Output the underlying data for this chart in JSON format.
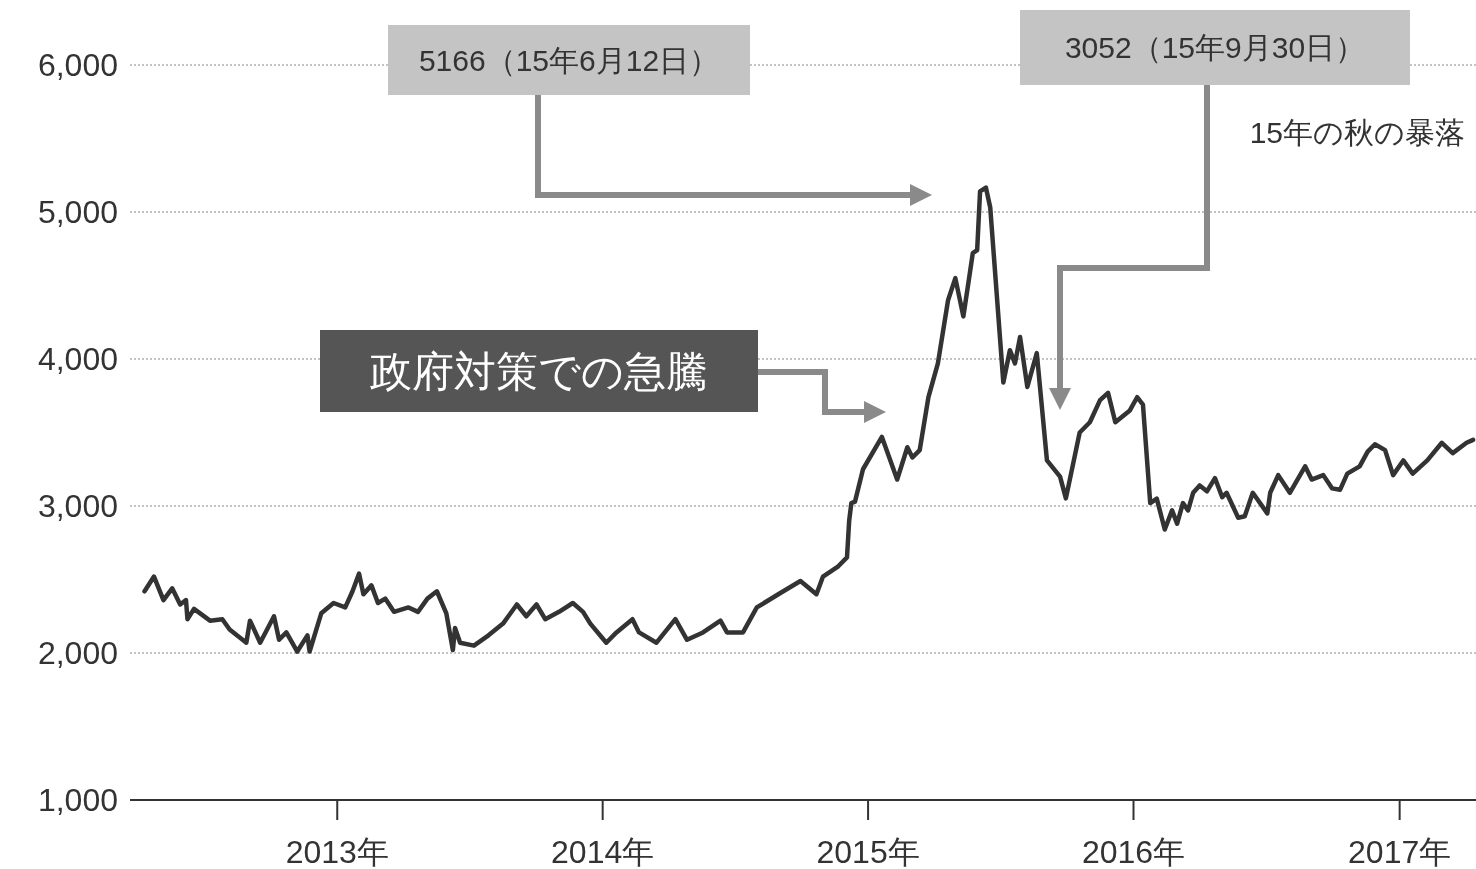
{
  "chart_data": {
    "type": "line",
    "x": [
      "2012-04-11",
      "2012-04-24",
      "2012-05-07",
      "2012-05-19",
      "2012-05-30",
      "2012-06-07",
      "2012-06-09",
      "2012-06-18",
      "2012-07-10",
      "2012-07-27",
      "2012-08-06",
      "2012-08-29",
      "2012-09-03",
      "2012-09-17",
      "2012-10-06",
      "2012-10-13",
      "2012-10-23",
      "2012-11-07",
      "2012-11-21",
      "2012-11-24",
      "2012-12-10",
      "2012-12-27",
      "2013-01-12",
      "2013-01-22",
      "2013-01-31",
      "2013-02-06",
      "2013-02-17",
      "2013-02-26",
      "2013-03-08",
      "2013-03-20",
      "2013-04-09",
      "2013-04-22",
      "2013-05-05",
      "2013-05-18",
      "2013-05-31",
      "2013-06-09",
      "2013-06-12",
      "2013-06-19",
      "2013-07-08",
      "2013-07-28",
      "2013-08-17",
      "2013-09-05",
      "2013-09-18",
      "2013-10-02",
      "2013-10-14",
      "2013-11-02",
      "2013-11-21",
      "2013-12-05",
      "2013-12-15",
      "2014-01-06",
      "2014-01-20",
      "2014-02-11",
      "2014-02-20",
      "2014-03-16",
      "2014-04-11",
      "2014-04-27",
      "2014-05-19",
      "2014-06-12",
      "2014-06-21",
      "2014-07-13",
      "2014-08-01",
      "2014-09-03",
      "2014-09-30",
      "2014-10-22",
      "2014-10-31",
      "2014-11-21",
      "2014-12-03",
      "2014-12-06",
      "2014-12-09",
      "2014-12-14",
      "2014-12-25",
      "2015-01-20",
      "2015-02-10",
      "2015-02-24",
      "2015-03-03",
      "2015-03-13",
      "2015-03-25",
      "2015-04-07",
      "2015-04-21",
      "2015-05-01",
      "2015-05-12",
      "2015-05-19",
      "2015-05-25",
      "2015-05-31",
      "2015-06-04",
      "2015-06-12",
      "2015-06-18",
      "2015-07-06",
      "2015-07-15",
      "2015-07-22",
      "2015-07-29",
      "2015-08-08",
      "2015-08-21",
      "2015-09-04",
      "2015-09-22",
      "2015-09-30",
      "2015-10-19",
      "2015-11-02",
      "2015-11-16",
      "2015-11-27",
      "2015-12-07",
      "2015-12-27",
      "2016-01-06",
      "2016-01-14",
      "2016-01-24",
      "2016-02-02",
      "2016-02-13",
      "2016-02-23",
      "2016-03-01",
      "2016-03-09",
      "2016-03-16",
      "2016-03-23",
      "2016-04-01",
      "2016-04-11",
      "2016-04-22",
      "2016-05-02",
      "2016-05-08",
      "2016-05-24",
      "2016-06-02",
      "2016-06-13",
      "2016-07-03",
      "2016-07-07",
      "2016-07-18",
      "2016-08-03",
      "2016-08-24",
      "2016-09-02",
      "2016-09-18",
      "2016-09-30",
      "2016-10-11",
      "2016-10-21",
      "2016-11-07",
      "2016-11-18",
      "2016-11-28",
      "2016-12-12",
      "2016-12-23",
      "2017-01-06",
      "2017-01-19",
      "2017-02-08",
      "2017-02-28",
      "2017-03-15",
      "2017-04-03",
      "2017-04-12"
    ],
    "series": [
      {
        "color": "#333333",
        "values": [
          2420,
          2520,
          2360,
          2440,
          2330,
          2360,
          2230,
          2300,
          2220,
          2230,
          2160,
          2070,
          2220,
          2070,
          2250,
          2090,
          2140,
          2010,
          2120,
          2010,
          2270,
          2340,
          2310,
          2420,
          2540,
          2400,
          2460,
          2340,
          2370,
          2280,
          2310,
          2280,
          2370,
          2420,
          2270,
          2020,
          2170,
          2070,
          2050,
          2120,
          2200,
          2330,
          2250,
          2330,
          2230,
          2280,
          2340,
          2280,
          2200,
          2070,
          2140,
          2230,
          2140,
          2070,
          2230,
          2090,
          2140,
          2220,
          2140,
          2140,
          2310,
          2410,
          2490,
          2400,
          2520,
          2590,
          2650,
          2900,
          3020,
          3030,
          3250,
          3470,
          3180,
          3400,
          3330,
          3380,
          3740,
          3970,
          4400,
          4550,
          4290,
          4520,
          4720,
          4740,
          5140,
          5166,
          5030,
          3840,
          4060,
          3970,
          4150,
          3810,
          4040,
          3310,
          3200,
          3052,
          3500,
          3570,
          3720,
          3770,
          3570,
          3650,
          3740,
          3690,
          3020,
          3050,
          2840,
          2970,
          2880,
          3020,
          2970,
          3090,
          3140,
          3100,
          3190,
          3060,
          3090,
          2920,
          2930,
          3090,
          2950,
          3090,
          3210,
          3090,
          3270,
          3180,
          3210,
          3120,
          3110,
          3220,
          3270,
          3370,
          3420,
          3380,
          3210,
          3310,
          3220,
          3310,
          3430,
          3360,
          3430,
          3450
        ]
      }
    ],
    "xlim": [
      "2012-03-22",
      "2017-04-16"
    ],
    "xticks": [
      {
        "value": "2013-01-01",
        "label": "2013年"
      },
      {
        "value": "2014-01-01",
        "label": "2014年"
      },
      {
        "value": "2015-01-01",
        "label": "2015年"
      },
      {
        "value": "2016-01-01",
        "label": "2016年"
      },
      {
        "value": "2017-01-01",
        "label": "2017年"
      }
    ],
    "ylim": [
      1000,
      6000
    ],
    "yticks": [
      {
        "value": 1000,
        "label": "1,000"
      },
      {
        "value": 2000,
        "label": "2,000"
      },
      {
        "value": 3000,
        "label": "3,000"
      },
      {
        "value": 4000,
        "label": "4,000"
      },
      {
        "value": 5000,
        "label": "5,000"
      },
      {
        "value": 6000,
        "label": "6,000"
      }
    ],
    "grid": "y",
    "annotations": [
      "5166（15年6月12日）",
      "3052（15年9月30日）",
      "政府対策での急騰",
      "15年の秋の暴落"
    ]
  }
}
